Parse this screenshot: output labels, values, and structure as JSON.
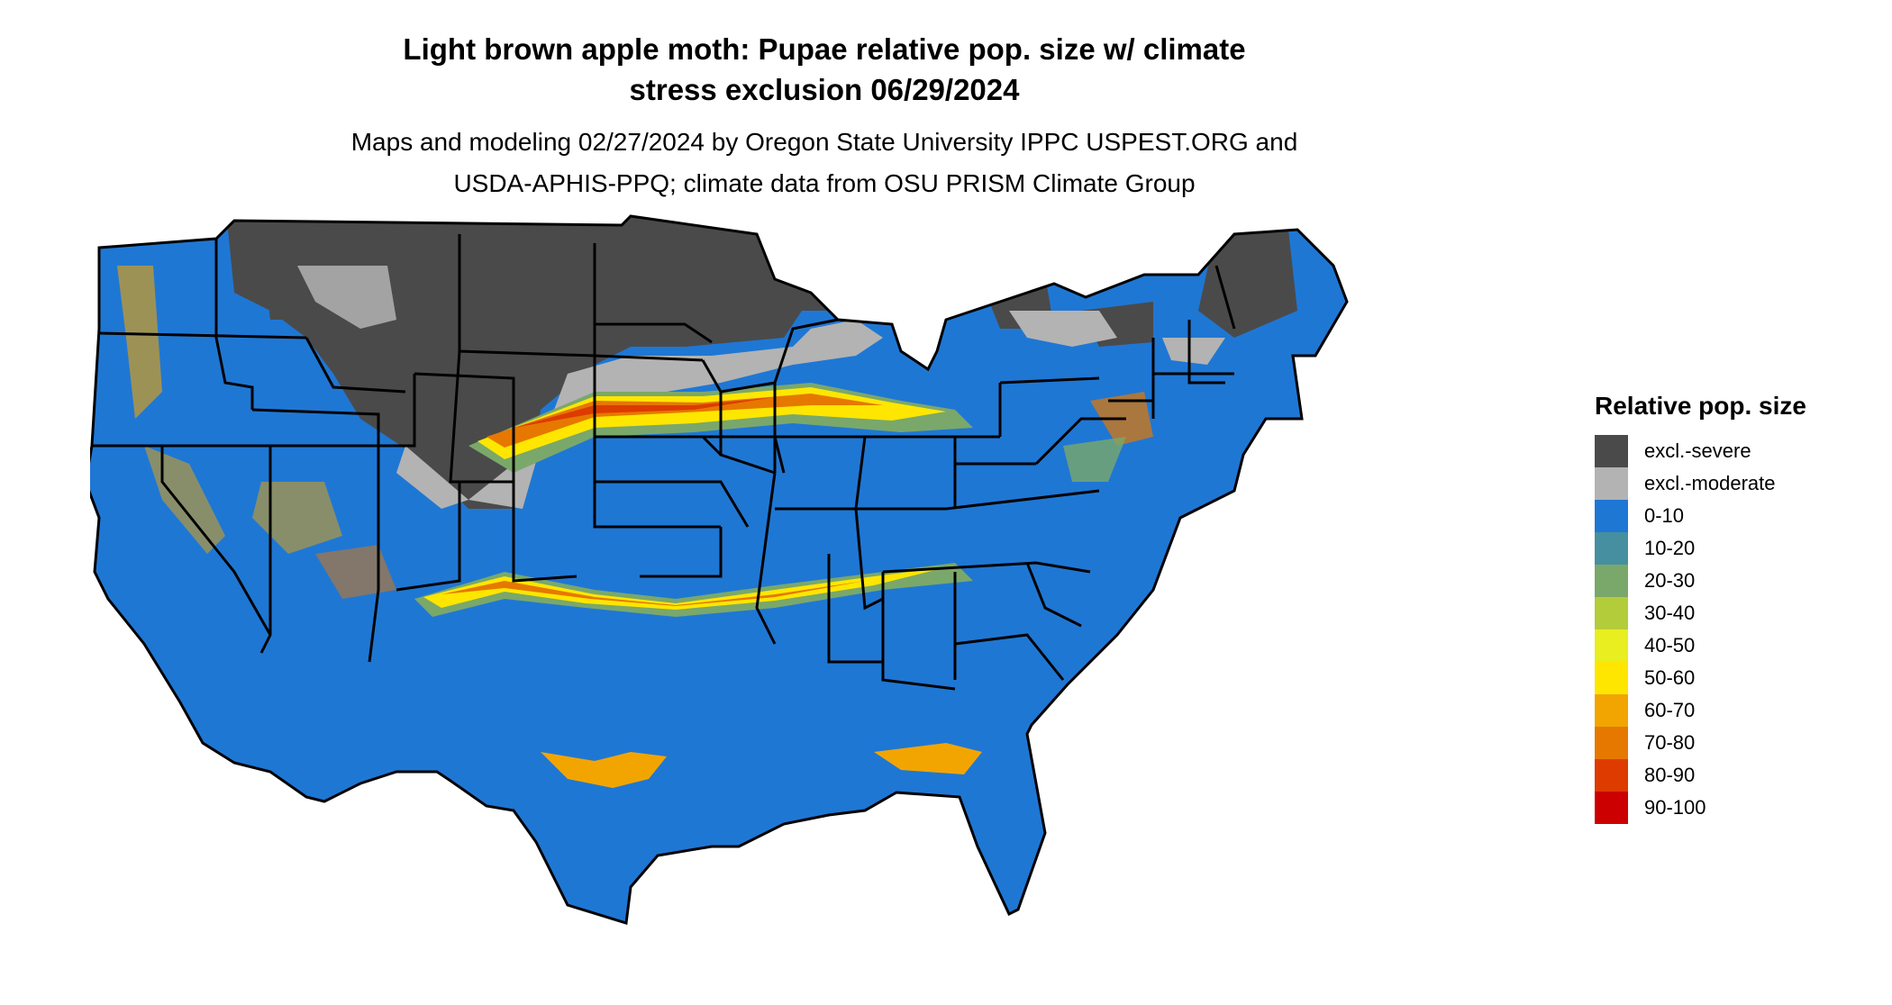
{
  "title_line1": "Light brown apple moth: Pupae relative pop. size w/ climate",
  "title_line2": "stress exclusion 06/29/2024",
  "subtitle_line1": "Maps and modeling 02/27/2024 by Oregon State University IPPC USPEST.ORG and",
  "subtitle_line2": "USDA-APHIS-PPQ; climate data from OSU PRISM Climate Group",
  "legend": {
    "title": "Relative pop. size",
    "items": [
      {
        "label": "excl.-severe",
        "color": "#4a4a4a"
      },
      {
        "label": "excl.-moderate",
        "color": "#b3b3b3"
      },
      {
        "label": "0-10",
        "color": "#1f77d4"
      },
      {
        "label": "10-20",
        "color": "#468fa0"
      },
      {
        "label": "20-30",
        "color": "#7aa86a"
      },
      {
        "label": "30-40",
        "color": "#b3cc3a"
      },
      {
        "label": "40-50",
        "color": "#e8ee1f"
      },
      {
        "label": "50-60",
        "color": "#fee600"
      },
      {
        "label": "60-70",
        "color": "#f2a500"
      },
      {
        "label": "70-80",
        "color": "#e67800"
      },
      {
        "label": "80-90",
        "color": "#dd3b00"
      },
      {
        "label": "90-100",
        "color": "#cc0000"
      }
    ]
  }
}
